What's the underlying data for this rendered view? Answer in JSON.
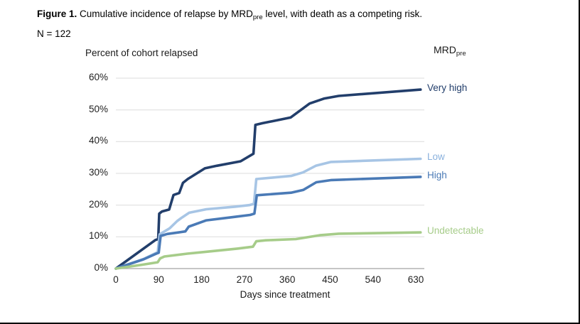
{
  "figure": {
    "title_prefix": "Figure 1.",
    "title_before_sub": " Cumulative incidence of relapse by MRD",
    "title_sub": "pre",
    "title_after_sub": " level, with death as a competing risk.",
    "n_label": "N = 122"
  },
  "chart_data": {
    "type": "line",
    "title": "Percent of cohort relapsed",
    "xlabel": "Days since treatment",
    "legend_title": "MRD",
    "legend_title_sub": "pre",
    "legend_position": "right-end-labels",
    "grid": true,
    "grid_color": "#dcdcdc",
    "axis_color": "#b3b3b3",
    "xlim": [
      0,
      648
    ],
    "ylim": [
      0,
      60
    ],
    "x_ticks": [
      0,
      90,
      180,
      270,
      360,
      450,
      540,
      630
    ],
    "y_ticks": [
      "0%",
      "10%",
      "20%",
      "30%",
      "40%",
      "50%",
      "60%"
    ],
    "series": [
      {
        "name": "Very high",
        "color": "#223e6b",
        "points": [
          [
            0,
            0
          ],
          [
            83,
            9
          ],
          [
            89,
            9.3
          ],
          [
            91,
            17.3
          ],
          [
            97,
            18
          ],
          [
            112,
            18.6
          ],
          [
            121,
            23.2
          ],
          [
            133,
            23.8
          ],
          [
            141,
            27
          ],
          [
            151,
            28.2
          ],
          [
            187,
            31.6
          ],
          [
            212,
            32.4
          ],
          [
            262,
            33.8
          ],
          [
            289,
            36.2
          ],
          [
            293,
            45.3
          ],
          [
            308,
            45.8
          ],
          [
            367,
            47.6
          ],
          [
            407,
            52
          ],
          [
            438,
            53.6
          ],
          [
            468,
            54.4
          ],
          [
            640,
            56.4
          ]
        ]
      },
      {
        "name": "Low",
        "color": "#a7c5e5",
        "points": [
          [
            0,
            0
          ],
          [
            58,
            3
          ],
          [
            84,
            4.9
          ],
          [
            88,
            5.2
          ],
          [
            92,
            10.8
          ],
          [
            113,
            12.7
          ],
          [
            129,
            15
          ],
          [
            139,
            16.1
          ],
          [
            154,
            17.6
          ],
          [
            190,
            18.7
          ],
          [
            250,
            19.5
          ],
          [
            280,
            20
          ],
          [
            290,
            20.4
          ],
          [
            295,
            28.2
          ],
          [
            368,
            29.2
          ],
          [
            393,
            30.3
          ],
          [
            420,
            32.4
          ],
          [
            452,
            33.6
          ],
          [
            640,
            34.6
          ]
        ]
      },
      {
        "name": "High",
        "color": "#4a7ab6",
        "points": [
          [
            0,
            0
          ],
          [
            58,
            2.9
          ],
          [
            85,
            4.7
          ],
          [
            90,
            5
          ],
          [
            94,
            10.3
          ],
          [
            108,
            10.9
          ],
          [
            146,
            11.7
          ],
          [
            153,
            13.2
          ],
          [
            190,
            15.2
          ],
          [
            250,
            16.3
          ],
          [
            282,
            16.9
          ],
          [
            291,
            17.3
          ],
          [
            296,
            23.1
          ],
          [
            368,
            23.9
          ],
          [
            394,
            24.8
          ],
          [
            421,
            27.2
          ],
          [
            453,
            27.9
          ],
          [
            640,
            28.9
          ]
        ]
      },
      {
        "name": "Undetectable",
        "color": "#a6cc89",
        "points": [
          [
            0,
            0
          ],
          [
            55,
            1.2
          ],
          [
            88,
            2
          ],
          [
            93,
            3.2
          ],
          [
            102,
            3.8
          ],
          [
            150,
            4.7
          ],
          [
            183,
            5.2
          ],
          [
            255,
            6.3
          ],
          [
            288,
            6.9
          ],
          [
            295,
            8.6
          ],
          [
            315,
            8.9
          ],
          [
            378,
            9.3
          ],
          [
            428,
            10.5
          ],
          [
            468,
            11
          ],
          [
            640,
            11.4
          ]
        ]
      }
    ]
  }
}
